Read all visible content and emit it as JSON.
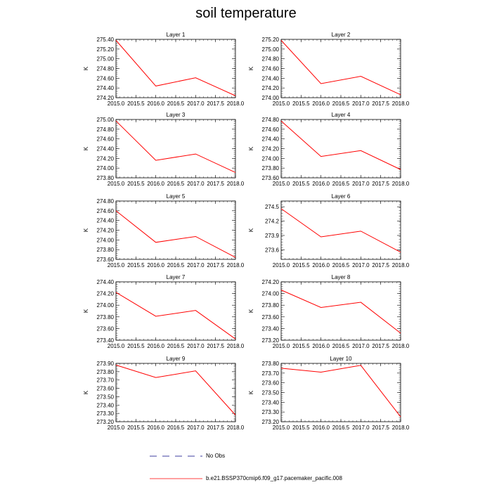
{
  "page": {
    "title": "soil temperature"
  },
  "legend": {
    "obs_label": "No Obs",
    "model_label": "b.e21.BSSP370cmip6.f09_g17.pacemaker_pacific.008"
  },
  "colors": {
    "model_line": "#ff0000",
    "obs_line": "#000080",
    "axis": "#000000"
  },
  "chart_data": [
    {
      "type": "line",
      "title": "Layer 1",
      "ylabel": "K",
      "xlim": [
        2015.0,
        2018.0
      ],
      "ylim": [
        274.2,
        275.4
      ],
      "x_ticks": [
        "2015.0",
        "2015.5",
        "2016.0",
        "2016.5",
        "2017.0",
        "2017.5",
        "2018.0"
      ],
      "y_ticks": [
        "274.20",
        "274.40",
        "274.60",
        "274.80",
        "275.00",
        "275.20",
        "275.40"
      ],
      "x": [
        2015,
        2016,
        2017,
        2018
      ],
      "values": [
        275.38,
        274.44,
        274.61,
        274.24
      ]
    },
    {
      "type": "line",
      "title": "Layer 2",
      "ylabel": "K",
      "xlim": [
        2015.0,
        2018.0
      ],
      "ylim": [
        274.0,
        275.2
      ],
      "x_ticks": [
        "2015.0",
        "2015.5",
        "2016.0",
        "2016.5",
        "2017.0",
        "2017.5",
        "2018.0"
      ],
      "y_ticks": [
        "274.00",
        "274.20",
        "274.40",
        "274.60",
        "274.80",
        "275.00",
        "275.20"
      ],
      "x": [
        2015,
        2016,
        2017,
        2018
      ],
      "values": [
        275.18,
        274.29,
        274.44,
        274.06
      ]
    },
    {
      "type": "line",
      "title": "Layer 3",
      "ylabel": "K",
      "xlim": [
        2015.0,
        2018.0
      ],
      "ylim": [
        273.8,
        275.0
      ],
      "x_ticks": [
        "2015.0",
        "2015.5",
        "2016.0",
        "2016.5",
        "2017.0",
        "2017.5",
        "2018.0"
      ],
      "y_ticks": [
        "273.80",
        "274.00",
        "274.20",
        "274.40",
        "274.60",
        "274.80",
        "275.00"
      ],
      "x": [
        2015,
        2016,
        2017,
        2018
      ],
      "values": [
        274.97,
        274.16,
        274.29,
        273.91
      ]
    },
    {
      "type": "line",
      "title": "Layer 4",
      "ylabel": "K",
      "xlim": [
        2015.0,
        2018.0
      ],
      "ylim": [
        273.6,
        274.8
      ],
      "x_ticks": [
        "2015.0",
        "2015.5",
        "2016.0",
        "2016.5",
        "2017.0",
        "2017.5",
        "2018.0"
      ],
      "y_ticks": [
        "273.60",
        "273.80",
        "274.00",
        "274.20",
        "274.40",
        "274.60",
        "274.80"
      ],
      "x": [
        2015,
        2016,
        2017,
        2018
      ],
      "values": [
        274.77,
        274.04,
        274.16,
        273.77
      ]
    },
    {
      "type": "line",
      "title": "Layer 5",
      "ylabel": "K",
      "xlim": [
        2015.0,
        2018.0
      ],
      "ylim": [
        273.6,
        274.8
      ],
      "x_ticks": [
        "2015.0",
        "2015.5",
        "2016.0",
        "2016.5",
        "2017.0",
        "2017.5",
        "2018.0"
      ],
      "y_ticks": [
        "273.60",
        "273.80",
        "274.00",
        "274.20",
        "274.40",
        "274.60",
        "274.80"
      ],
      "x": [
        2015,
        2016,
        2017,
        2018
      ],
      "values": [
        274.6,
        273.95,
        274.07,
        273.64
      ]
    },
    {
      "type": "line",
      "title": "Layer 6",
      "ylabel": "K",
      "xlim": [
        2015.0,
        2018.0
      ],
      "ylim": [
        273.4,
        274.62
      ],
      "x_ticks": [
        "2015.0",
        "2015.5",
        "2016.0",
        "2016.5",
        "2017.0",
        "2017.5",
        "2018.0"
      ],
      "y_ticks": [
        "273.6",
        "273.9",
        "274.2",
        "274.5"
      ],
      "x": [
        2015,
        2016,
        2017,
        2018
      ],
      "values": [
        274.46,
        273.87,
        273.99,
        273.55
      ]
    },
    {
      "type": "line",
      "title": "Layer 7",
      "ylabel": "K",
      "xlim": [
        2015.0,
        2018.0
      ],
      "ylim": [
        273.4,
        274.4
      ],
      "x_ticks": [
        "2015.0",
        "2015.5",
        "2016.0",
        "2016.5",
        "2017.0",
        "2017.5",
        "2018.0"
      ],
      "y_ticks": [
        "273.40",
        "273.60",
        "273.80",
        "274.00",
        "274.20",
        "274.40"
      ],
      "x": [
        2015,
        2016,
        2017,
        2018
      ],
      "values": [
        274.22,
        273.81,
        273.91,
        273.42
      ]
    },
    {
      "type": "line",
      "title": "Layer 8",
      "ylabel": "K",
      "xlim": [
        2015.0,
        2018.0
      ],
      "ylim": [
        273.2,
        274.2
      ],
      "x_ticks": [
        "2015.0",
        "2015.5",
        "2016.0",
        "2016.5",
        "2017.0",
        "2017.5",
        "2018.0"
      ],
      "y_ticks": [
        "273.20",
        "273.40",
        "273.60",
        "273.80",
        "274.00",
        "274.20"
      ],
      "x": [
        2015,
        2016,
        2017,
        2018
      ],
      "values": [
        274.06,
        273.76,
        273.85,
        273.32
      ]
    },
    {
      "type": "line",
      "title": "Layer 9",
      "ylabel": "K",
      "xlim": [
        2015.0,
        2018.0
      ],
      "ylim": [
        273.2,
        273.9
      ],
      "x_ticks": [
        "2015.0",
        "2015.5",
        "2016.0",
        "2016.5",
        "2017.0",
        "2017.5",
        "2018.0"
      ],
      "y_ticks": [
        "273.20",
        "273.30",
        "273.40",
        "273.50",
        "273.60",
        "273.70",
        "273.80",
        "273.90"
      ],
      "x": [
        2015,
        2016,
        2017,
        2018
      ],
      "values": [
        273.88,
        273.73,
        273.81,
        273.28
      ]
    },
    {
      "type": "line",
      "title": "Layer 10",
      "ylabel": "K",
      "xlim": [
        2015.0,
        2018.0
      ],
      "ylim": [
        273.2,
        273.8
      ],
      "x_ticks": [
        "2015.0",
        "2015.5",
        "2016.0",
        "2016.5",
        "2017.0",
        "2017.5",
        "2018.0"
      ],
      "y_ticks": [
        "273.20",
        "273.30",
        "273.40",
        "273.50",
        "273.60",
        "273.70",
        "273.80"
      ],
      "x": [
        2015,
        2016,
        2017,
        2018
      ],
      "values": [
        273.75,
        273.71,
        273.78,
        273.25
      ]
    }
  ]
}
